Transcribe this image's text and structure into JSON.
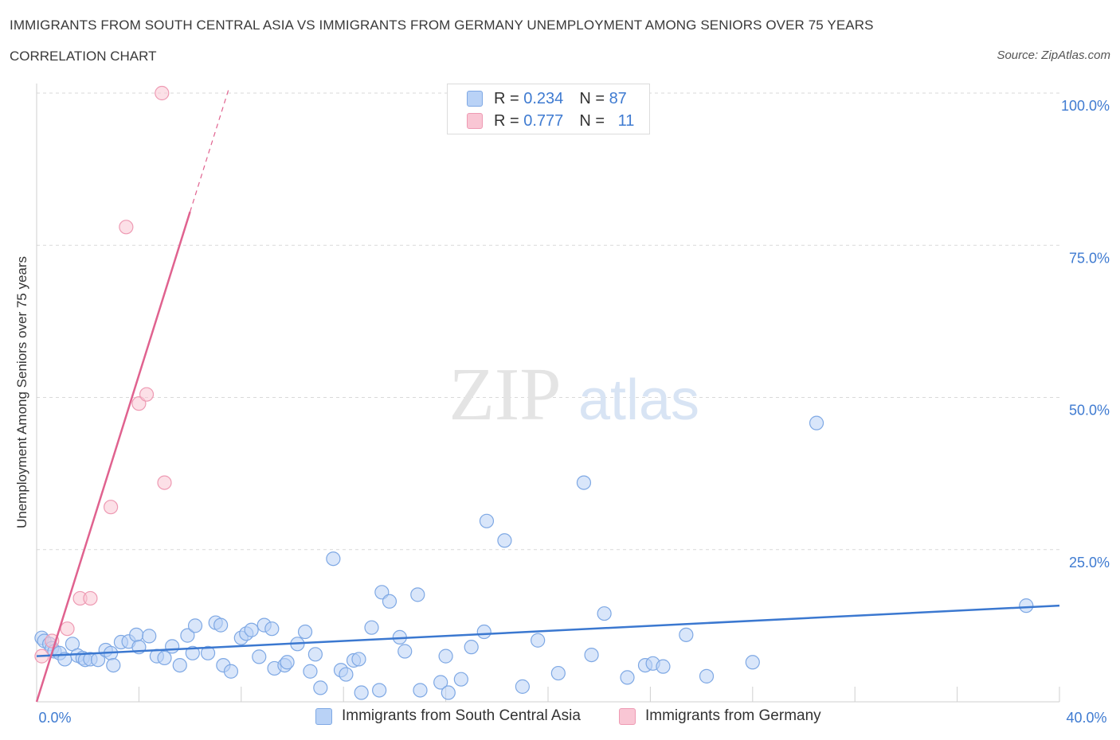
{
  "header": {
    "title": "IMMIGRANTS FROM SOUTH CENTRAL ASIA VS IMMIGRANTS FROM GERMANY UNEMPLOYMENT AMONG SENIORS OVER 75 YEARS",
    "subtitle": "CORRELATION CHART",
    "source": "Source: ZipAtlas.com"
  },
  "legend_top": {
    "rows": [
      {
        "r_label": "R =",
        "r_value": "0.234",
        "n_label": "N =",
        "n_value": "87"
      },
      {
        "r_label": "R =",
        "r_value": "0.777",
        "n_label": "N =",
        "n_value": "11"
      }
    ]
  },
  "legend_bottom": {
    "items": [
      "Immigrants from South Central Asia",
      "Immigrants from Germany"
    ]
  },
  "watermark": {
    "zip": "ZIP",
    "atlas": "atlas"
  },
  "colors": {
    "blue": "#3b78d0",
    "blue_fill": "#b9d2f6",
    "pink": "#e0628f",
    "pink_fill": "#f9c6d4",
    "grid": "#d9d9d9",
    "tick_label": "#3f7bd1"
  },
  "chart_data": {
    "type": "scatter",
    "ylabel": "Unemployment Among Seniors over 75 years",
    "xlabel": "",
    "xlim": [
      0,
      40
    ],
    "ylim": [
      0,
      100
    ],
    "x_tick_labels": [
      {
        "value": 0,
        "label": "0.0%"
      },
      {
        "value": 40,
        "label": "40.0%"
      }
    ],
    "y_tick_labels": [
      {
        "value": 25,
        "label": "25.0%"
      },
      {
        "value": 50,
        "label": "50.0%"
      },
      {
        "value": 75,
        "label": "75.0%"
      },
      {
        "value": 100,
        "label": "100.0%"
      }
    ],
    "grid": true,
    "series": [
      {
        "name": "Immigrants from South Central Asia",
        "color": "#3b78d0",
        "trend": {
          "x": [
            0,
            40
          ],
          "y": [
            7.5,
            15.8
          ]
        },
        "points": [
          [
            0.2,
            10.5
          ],
          [
            0.3,
            10.0
          ],
          [
            0.5,
            9.5
          ],
          [
            0.6,
            8.8
          ],
          [
            0.7,
            8.3
          ],
          [
            0.9,
            8.0
          ],
          [
            1.1,
            7.0
          ],
          [
            1.4,
            9.5
          ],
          [
            1.6,
            7.6
          ],
          [
            1.8,
            7.2
          ],
          [
            1.9,
            6.9
          ],
          [
            2.1,
            7.0
          ],
          [
            2.4,
            6.9
          ],
          [
            2.7,
            8.5
          ],
          [
            2.9,
            8.0
          ],
          [
            3.0,
            6.0
          ],
          [
            3.3,
            9.8
          ],
          [
            3.6,
            9.9
          ],
          [
            3.9,
            11.0
          ],
          [
            4.0,
            9.0
          ],
          [
            4.4,
            10.8
          ],
          [
            4.7,
            7.5
          ],
          [
            5.0,
            7.2
          ],
          [
            5.3,
            9.1
          ],
          [
            5.6,
            6.0
          ],
          [
            5.9,
            10.9
          ],
          [
            6.1,
            8.0
          ],
          [
            6.2,
            12.5
          ],
          [
            6.7,
            8.0
          ],
          [
            7.0,
            13.0
          ],
          [
            7.2,
            12.6
          ],
          [
            7.3,
            6.0
          ],
          [
            7.6,
            5.0
          ],
          [
            8.0,
            10.5
          ],
          [
            8.2,
            11.2
          ],
          [
            8.4,
            11.8
          ],
          [
            8.7,
            7.4
          ],
          [
            8.9,
            12.6
          ],
          [
            9.2,
            12.0
          ],
          [
            9.3,
            5.5
          ],
          [
            9.7,
            6.0
          ],
          [
            9.8,
            6.5
          ],
          [
            10.2,
            9.5
          ],
          [
            10.5,
            11.5
          ],
          [
            10.7,
            5.0
          ],
          [
            10.9,
            7.8
          ],
          [
            11.1,
            2.3
          ],
          [
            11.6,
            23.5
          ],
          [
            11.9,
            5.2
          ],
          [
            12.1,
            4.5
          ],
          [
            12.4,
            6.8
          ],
          [
            12.6,
            7.0
          ],
          [
            12.7,
            1.5
          ],
          [
            13.1,
            12.2
          ],
          [
            13.4,
            1.9
          ],
          [
            13.5,
            18.0
          ],
          [
            13.8,
            16.5
          ],
          [
            14.2,
            10.6
          ],
          [
            14.4,
            8.3
          ],
          [
            14.9,
            17.6
          ],
          [
            15.0,
            1.9
          ],
          [
            15.8,
            3.2
          ],
          [
            16.0,
            7.5
          ],
          [
            16.1,
            1.5
          ],
          [
            16.6,
            3.7
          ],
          [
            17.0,
            9.0
          ],
          [
            17.5,
            11.5
          ],
          [
            17.6,
            29.7
          ],
          [
            18.3,
            26.5
          ],
          [
            19.0,
            2.5
          ],
          [
            19.6,
            10.1
          ],
          [
            20.4,
            4.7
          ],
          [
            21.4,
            36.0
          ],
          [
            21.7,
            7.7
          ],
          [
            22.2,
            14.5
          ],
          [
            23.1,
            4.0
          ],
          [
            23.8,
            6.0
          ],
          [
            24.1,
            6.3
          ],
          [
            24.5,
            5.8
          ],
          [
            25.4,
            11.0
          ],
          [
            26.2,
            4.2
          ],
          [
            28.0,
            6.5
          ],
          [
            30.5,
            45.8
          ],
          [
            38.7,
            15.8
          ]
        ]
      },
      {
        "name": "Immigrants from Germany",
        "color": "#e0628f",
        "trend": {
          "x": [
            0,
            6.0
          ],
          "y": [
            0,
            80.5
          ],
          "dash_to": {
            "x": 7.5,
            "y": 100.5
          }
        },
        "points": [
          [
            0.2,
            7.5
          ],
          [
            0.6,
            10.0
          ],
          [
            1.2,
            12.0
          ],
          [
            1.7,
            17.0
          ],
          [
            2.1,
            17.0
          ],
          [
            2.9,
            32.0
          ],
          [
            3.5,
            78.0
          ],
          [
            4.0,
            49.0
          ],
          [
            4.3,
            50.5
          ],
          [
            5.0,
            36.0
          ],
          [
            4.9,
            100.0
          ]
        ]
      }
    ]
  }
}
